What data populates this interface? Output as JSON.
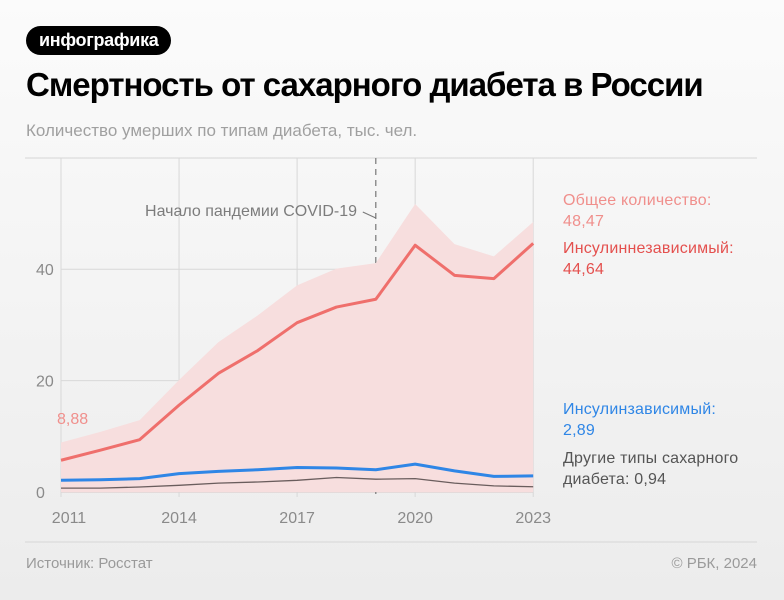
{
  "badge": "инфографика",
  "title": "Смертность от сахарного диабета в России",
  "subtitle": "Количество умерших по типам диабета, тыс. чел.",
  "source": "Источник: Росстат",
  "copyright": "© РБК, 2024",
  "chart_data": {
    "type": "line",
    "x": [
      2011,
      2012,
      2013,
      2014,
      2015,
      2016,
      2017,
      2018,
      2019,
      2020,
      2021,
      2022,
      2023
    ],
    "xticks": [
      "2011",
      "2014",
      "2017",
      "2020",
      "2023"
    ],
    "yticks": [
      "0",
      "20",
      "40"
    ],
    "ylim": [
      0,
      55
    ],
    "grid": true,
    "series": [
      {
        "name": "Общее количество",
        "kind": "area",
        "color": "#f7dede",
        "values": [
          8.88,
          10.8,
          12.9,
          20.1,
          26.9,
          31.7,
          37.1,
          40.1,
          41.1,
          51.7,
          44.5,
          42.3,
          48.47
        ]
      },
      {
        "name": "Инсулиннезависимый",
        "kind": "line",
        "color": "#ef6f6c",
        "values": [
          5.7,
          7.5,
          9.4,
          15.6,
          21.3,
          25.4,
          30.4,
          33.2,
          34.6,
          44.3,
          38.9,
          38.3,
          44.64
        ]
      },
      {
        "name": "Инсулинзависимый",
        "kind": "line",
        "color": "#2f86e6",
        "values": [
          2.1,
          2.2,
          2.4,
          3.3,
          3.7,
          4.0,
          4.4,
          4.3,
          4.0,
          5.0,
          3.8,
          2.8,
          2.89
        ]
      },
      {
        "name": "Другие типы сахарного диабета",
        "kind": "line",
        "color": "#6a5d5d",
        "values": [
          0.7,
          0.7,
          0.9,
          1.2,
          1.6,
          1.8,
          2.1,
          2.6,
          2.3,
          2.4,
          1.6,
          1.1,
          0.94
        ]
      }
    ],
    "annotations": {
      "covid": {
        "x": 2019,
        "text": "Начало пандемии COVID-19"
      },
      "start_total": "8,88",
      "total": {
        "label": "Общее количество:",
        "value": "48,47",
        "color": "#f08f8c"
      },
      "type2": {
        "label": "Инсулиннезависимый:",
        "value": "44,64",
        "color": "#e4504e"
      },
      "type1": {
        "label": "Инсулинзависимый:",
        "value": "2,89",
        "color": "#2f86e6"
      },
      "other": {
        "label": "Другие типы сахарного",
        "label2": "диабета: 0,94",
        "color": "#555555"
      }
    }
  }
}
